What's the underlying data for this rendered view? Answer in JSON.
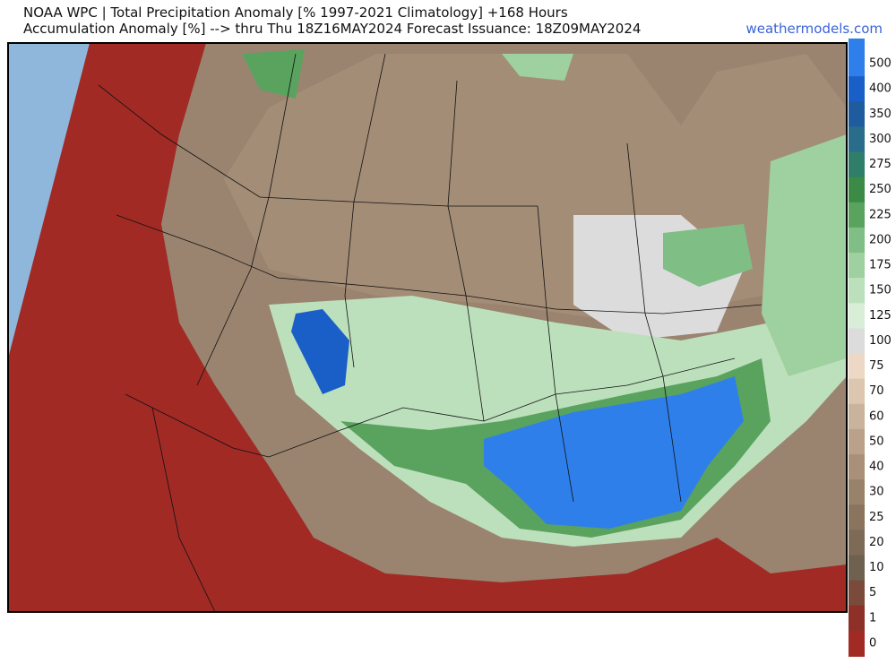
{
  "header": {
    "title_line1": "NOAA WPC | Total Precipitation Anomaly [% 1997-2021 Climatology] +168 Hours",
    "title_line2": "Accumulation Anomaly [%] --> thru Thu 18Z16MAY2024   Forecast Issuance: 18Z09MAY2024",
    "source": "weathermodels.com"
  },
  "colorbar": {
    "levels": [
      {
        "label": "500",
        "color": "#2f7fea"
      },
      {
        "label": "400",
        "color": "#1a5fc8"
      },
      {
        "label": "350",
        "color": "#1f5c9e"
      },
      {
        "label": "300",
        "color": "#2a6d8a"
      },
      {
        "label": "275",
        "color": "#2f7e6a"
      },
      {
        "label": "250",
        "color": "#3b8a45"
      },
      {
        "label": "225",
        "color": "#5aa35e"
      },
      {
        "label": "200",
        "color": "#7fbf85"
      },
      {
        "label": "175",
        "color": "#9fd0a0"
      },
      {
        "label": "150",
        "color": "#bde0bc"
      },
      {
        "label": "125",
        "color": "#d8eed6"
      },
      {
        "label": "100",
        "color": "#dcdcdc"
      },
      {
        "label": "75",
        "color": "#ecd8c4"
      },
      {
        "label": "70",
        "color": "#dcc6b0"
      },
      {
        "label": "60",
        "color": "#c9b39c"
      },
      {
        "label": "50",
        "color": "#b9a18a"
      },
      {
        "label": "40",
        "color": "#a99179"
      },
      {
        "label": "30",
        "color": "#99826a"
      },
      {
        "label": "25",
        "color": "#8a745e"
      },
      {
        "label": "20",
        "color": "#7d6b57"
      },
      {
        "label": "10",
        "color": "#6e6150"
      },
      {
        "label": "5",
        "color": "#7a4a3a"
      },
      {
        "label": "1",
        "color": "#8c3028"
      },
      {
        "label": "0",
        "color": "#a12a25"
      }
    ]
  }
}
